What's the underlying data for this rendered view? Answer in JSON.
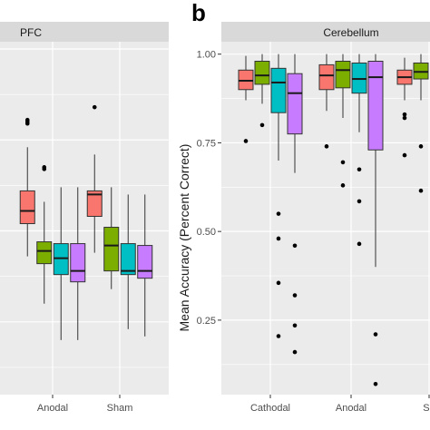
{
  "panel_letter": "b",
  "colors": {
    "series": [
      "#F8766D",
      "#7CAE00",
      "#00BFC4",
      "#C77CFF"
    ],
    "panel_bg": "#EBEBEB",
    "strip_bg": "#D9D9D9",
    "grid": "#FFFFFF"
  },
  "chart_data": [
    {
      "type": "box",
      "strip_label": "PFC",
      "categories": [
        "Anodal",
        "Sham"
      ],
      "ylim": [
        0.05,
        1.02
      ],
      "y_ticks": [
        0.25,
        0.5,
        0.75,
        1.0
      ],
      "show_y_tick_labels": false,
      "ylabel": "",
      "grid": true,
      "groups": [
        {
          "category": "Anodal",
          "boxes": [
            {
              "q1": 0.52,
              "median": 0.555,
              "q3": 0.61,
              "whisk_lo": 0.43,
              "whisk_hi": 0.73,
              "outliers": [
                0.805,
                0.8,
                0.795
              ]
            },
            {
              "q1": 0.41,
              "median": 0.445,
              "q3": 0.47,
              "whisk_lo": 0.3,
              "whisk_hi": 0.58,
              "outliers": [
                0.675,
                0.67
              ]
            },
            {
              "q1": 0.38,
              "median": 0.425,
              "q3": 0.465,
              "whisk_lo": 0.2,
              "whisk_hi": 0.62,
              "outliers": []
            },
            {
              "q1": 0.36,
              "median": 0.39,
              "q3": 0.465,
              "whisk_lo": 0.2,
              "whisk_hi": 0.62,
              "outliers": []
            }
          ]
        },
        {
          "category": "Sham",
          "boxes": [
            {
              "q1": 0.54,
              "median": 0.6,
              "q3": 0.61,
              "whisk_lo": 0.44,
              "whisk_hi": 0.71,
              "outliers": [
                0.84
              ]
            },
            {
              "q1": 0.39,
              "median": 0.46,
              "q3": 0.51,
              "whisk_lo": 0.34,
              "whisk_hi": 0.62,
              "outliers": []
            },
            {
              "q1": 0.38,
              "median": 0.39,
              "q3": 0.465,
              "whisk_lo": 0.23,
              "whisk_hi": 0.6,
              "outliers": []
            },
            {
              "q1": 0.37,
              "median": 0.39,
              "q3": 0.46,
              "whisk_lo": 0.21,
              "whisk_hi": 0.6,
              "outliers": []
            }
          ]
        }
      ]
    },
    {
      "type": "box",
      "strip_label": "Cerebellum",
      "categories": [
        "Cathodal",
        "Anodal",
        "Sham"
      ],
      "visible_category_labels": [
        "Cathodal",
        "Anodal",
        "Sh"
      ],
      "ylim": [
        0.04,
        1.035
      ],
      "y_ticks": [
        0.25,
        0.5,
        0.75,
        1.0
      ],
      "y_tick_labels": [
        "0.25",
        "0.50",
        "0.75",
        "1.00"
      ],
      "ylabel": "Mean Accuracy (Percent Correct)",
      "grid": true,
      "groups": [
        {
          "category": "Cathodal",
          "boxes": [
            {
              "q1": 0.9,
              "median": 0.925,
              "q3": 0.955,
              "whisk_lo": 0.87,
              "whisk_hi": 0.995,
              "outliers": [
                0.755
              ]
            },
            {
              "q1": 0.915,
              "median": 0.94,
              "q3": 0.98,
              "whisk_lo": 0.86,
              "whisk_hi": 1.0,
              "outliers": [
                0.8
              ]
            },
            {
              "q1": 0.835,
              "median": 0.92,
              "q3": 0.96,
              "whisk_lo": 0.7,
              "whisk_hi": 1.0,
              "outliers": [
                0.55,
                0.48,
                0.355,
                0.205
              ]
            },
            {
              "q1": 0.775,
              "median": 0.89,
              "q3": 0.945,
              "whisk_lo": 0.665,
              "whisk_hi": 1.0,
              "outliers": [
                0.46,
                0.32,
                0.235,
                0.16
              ]
            }
          ]
        },
        {
          "category": "Anodal",
          "boxes": [
            {
              "q1": 0.9,
              "median": 0.94,
              "q3": 0.97,
              "whisk_lo": 0.84,
              "whisk_hi": 1.0,
              "outliers": [
                0.74
              ]
            },
            {
              "q1": 0.905,
              "median": 0.955,
              "q3": 0.98,
              "whisk_lo": 0.82,
              "whisk_hi": 1.0,
              "outliers": [
                0.695,
                0.63
              ]
            },
            {
              "q1": 0.89,
              "median": 0.93,
              "q3": 0.975,
              "whisk_lo": 0.78,
              "whisk_hi": 1.0,
              "outliers": [
                0.675,
                0.585,
                0.465
              ]
            },
            {
              "q1": 0.73,
              "median": 0.935,
              "q3": 0.98,
              "whisk_lo": 0.4,
              "whisk_hi": 1.0,
              "outliers": [
                0.21,
                0.07
              ]
            }
          ]
        },
        {
          "category": "Sham",
          "boxes": [
            {
              "q1": 0.915,
              "median": 0.935,
              "q3": 0.955,
              "whisk_lo": 0.87,
              "whisk_hi": 0.99,
              "outliers": [
                0.83,
                0.82,
                0.715
              ]
            },
            {
              "q1": 0.93,
              "median": 0.95,
              "q3": 0.975,
              "whisk_lo": 0.87,
              "whisk_hi": 1.0,
              "outliers": [
                0.74,
                0.615
              ]
            }
          ]
        }
      ]
    }
  ]
}
